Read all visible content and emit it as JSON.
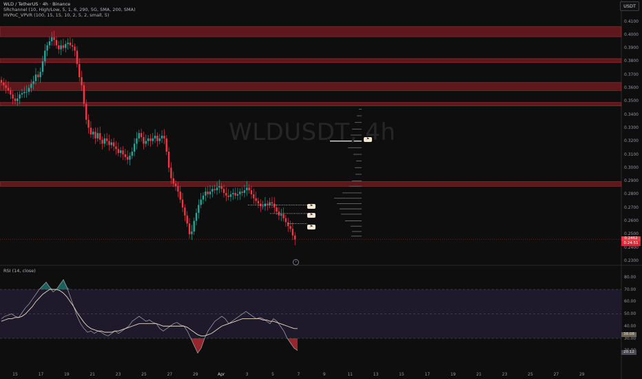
{
  "header": {
    "title": "WLD / TetherUS · 4h · Binance",
    "indicator_1": "SRchannel (10, High/Low, 5, 1, 6, 290, 5G, SMA, 200, SMA)",
    "indicator_2": "HVPoC_VPVR (100, 15, 15, 10, 2, 5, 2, small, 5)",
    "currency": "USDT"
  },
  "watermark": "WLDUSDT, 4h",
  "rsi_label": "RSI (14, close)",
  "price_axis": [
    "0.4100",
    "0.4000",
    "0.3900",
    "0.3800",
    "0.3700",
    "0.3600",
    "0.3500",
    "0.3400",
    "0.3300",
    "0.3200",
    "0.3100",
    "0.3000",
    "0.2900",
    "0.2800",
    "0.2700",
    "0.2600",
    "0.2500",
    "0.2400",
    "0.2300"
  ],
  "price_labels": {
    "last_price": "0.2462",
    "countdown": "0:24:51"
  },
  "rsi_axis": [
    "80.00",
    "70.00",
    "60.00",
    "50.00",
    "40.00",
    "30.00",
    "20.00"
  ],
  "rsi_labels": {
    "rsi_ma": "38.08",
    "rsi_value": "20.12"
  },
  "x_axis": [
    "15",
    "17",
    "19",
    "21",
    "23",
    "25",
    "27",
    "29",
    "Apr",
    "3",
    "5",
    "7",
    "9",
    "11",
    "13",
    "15",
    "17",
    "19",
    "21",
    "23",
    "25",
    "27",
    "29"
  ],
  "alert_flags": [
    "⚑",
    "⚑",
    "⚑",
    "⚑"
  ],
  "goto_live": "⚡",
  "colors": {
    "bull": "#26a69a",
    "bear": "#f23645",
    "zone": "#7a1c22",
    "rsi_line": "#9a9ca3",
    "rsi_ma": "#e8dcc2",
    "rsi_band": "#1f1a2b"
  },
  "chart_data": {
    "type": "candlestick",
    "price_range": [
      0.23,
      0.41
    ],
    "resistance_zones": [
      [
        0.3985,
        0.406
      ],
      [
        0.379,
        0.382
      ],
      [
        0.358,
        0.364
      ],
      [
        0.3465,
        0.349
      ],
      [
        0.286,
        0.2895
      ]
    ],
    "closes": [
      0.364,
      0.362,
      0.36,
      0.358,
      0.355,
      0.352,
      0.35,
      0.352,
      0.355,
      0.356,
      0.357,
      0.357,
      0.36,
      0.363,
      0.365,
      0.37,
      0.368,
      0.372,
      0.38,
      0.388,
      0.392,
      0.395,
      0.398,
      0.396,
      0.392,
      0.389,
      0.392,
      0.39,
      0.393,
      0.394,
      0.392,
      0.391,
      0.388,
      0.378,
      0.368,
      0.362,
      0.348,
      0.336,
      0.33,
      0.325,
      0.327,
      0.322,
      0.326,
      0.321,
      0.318,
      0.322,
      0.32,
      0.317,
      0.319,
      0.316,
      0.314,
      0.311,
      0.313,
      0.31,
      0.308,
      0.306,
      0.309,
      0.312,
      0.318,
      0.322,
      0.326,
      0.323,
      0.318,
      0.32,
      0.322,
      0.32,
      0.322,
      0.324,
      0.32,
      0.322,
      0.324,
      0.322,
      0.312,
      0.3,
      0.292,
      0.288,
      0.286,
      0.282,
      0.276,
      0.27,
      0.264,
      0.258,
      0.25,
      0.252,
      0.26,
      0.266,
      0.272,
      0.276,
      0.279,
      0.282,
      0.28,
      0.282,
      0.284,
      0.283,
      0.285,
      0.286,
      0.284,
      0.281,
      0.279,
      0.278,
      0.28,
      0.281,
      0.279,
      0.28,
      0.282,
      0.281,
      0.283,
      0.285,
      0.283,
      0.28,
      0.277,
      0.275,
      0.273,
      0.271,
      0.271,
      0.273,
      0.272,
      0.274,
      0.273,
      0.27,
      0.267,
      0.264,
      0.265,
      0.262,
      0.259,
      0.256,
      0.254,
      0.249,
      0.246
    ],
    "rsi": [
      46,
      48,
      49,
      50,
      48,
      47,
      51,
      55,
      58,
      62,
      66,
      70,
      73,
      76,
      72,
      68,
      70,
      74,
      78,
      72,
      64,
      56,
      48,
      42,
      38,
      35,
      36,
      34,
      36,
      35,
      33,
      32,
      34,
      36,
      34,
      36,
      38,
      40,
      44,
      46,
      48,
      46,
      44,
      45,
      43,
      42,
      38,
      36,
      38,
      40,
      42,
      43,
      41,
      40,
      36,
      30,
      24,
      18,
      22,
      30,
      36,
      40,
      44,
      46,
      48,
      46,
      42,
      44,
      46,
      48,
      50,
      52,
      50,
      48,
      46,
      47,
      46,
      44,
      42,
      46,
      44,
      40,
      36,
      30,
      26,
      22,
      20
    ],
    "rsi_ma": [
      44,
      45,
      46,
      46,
      47,
      47,
      48,
      50,
      53,
      56,
      60,
      63,
      66,
      68,
      70,
      70,
      70,
      69,
      67,
      64,
      60,
      56,
      51,
      47,
      43,
      40,
      38,
      37,
      36,
      36,
      35,
      35,
      35,
      36,
      36,
      37,
      38,
      39,
      40,
      41,
      42,
      42,
      42,
      42,
      42,
      42,
      41,
      40,
      40,
      40,
      40,
      40,
      40,
      40,
      39,
      37,
      35,
      33,
      32,
      32,
      33,
      34,
      36,
      38,
      40,
      41,
      42,
      43,
      44,
      45,
      46,
      46,
      46,
      46,
      46,
      46,
      45,
      45,
      44,
      44,
      43,
      42,
      41,
      40,
      39,
      38,
      38
    ]
  }
}
